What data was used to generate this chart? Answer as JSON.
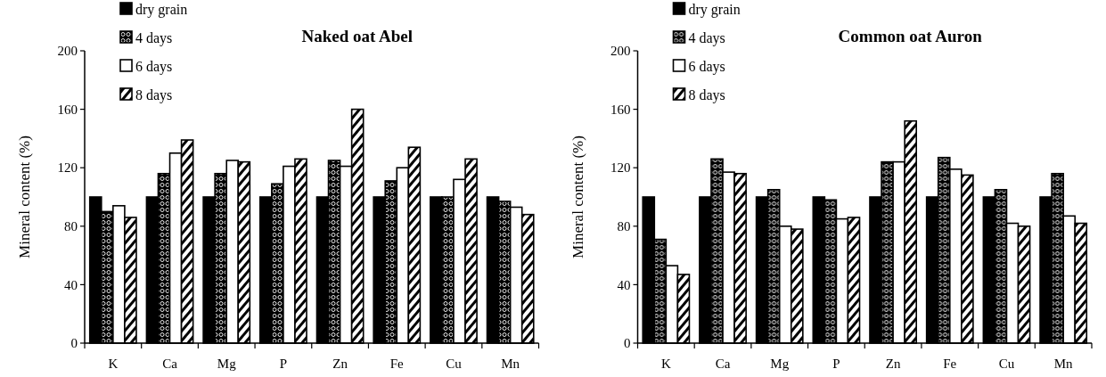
{
  "chart_data": [
    {
      "type": "bar",
      "title": "Naked oat Abel",
      "ylabel": "Mineral content (%)",
      "categories": [
        "K",
        "Ca",
        "Mg",
        "P",
        "Zn",
        "Fe",
        "Cu",
        "Mn"
      ],
      "series": [
        {
          "name": "dry grain",
          "color": "#000000",
          "values": [
            100,
            100,
            100,
            100,
            100,
            100,
            100,
            100
          ]
        },
        {
          "name": "4 days",
          "color": "#000000",
          "values": [
            90,
            116,
            116,
            109,
            125,
            111,
            100,
            97
          ]
        },
        {
          "name": "6 days",
          "color": "#ffffff",
          "values": [
            94,
            130,
            125,
            121,
            121,
            120,
            112,
            93
          ]
        },
        {
          "name": "8 days",
          "color": "#000000",
          "values": [
            86,
            139,
            124,
            126,
            160,
            134,
            126,
            88
          ]
        }
      ],
      "ylim": [
        0,
        200
      ],
      "yticks": [
        0,
        40,
        80,
        120,
        160,
        200
      ],
      "legend": "top left",
      "grid": false
    },
    {
      "type": "bar",
      "title": "Common oat Auron",
      "ylabel": "Mineral content (%)",
      "categories": [
        "K",
        "Ca",
        "Mg",
        "P",
        "Zn",
        "Fe",
        "Cu",
        "Mn"
      ],
      "series": [
        {
          "name": "dry grain",
          "color": "#000000",
          "values": [
            100,
            100,
            100,
            100,
            100,
            100,
            100,
            100
          ]
        },
        {
          "name": "4 days",
          "color": "#000000",
          "values": [
            71,
            126,
            105,
            98,
            124,
            127,
            105,
            116
          ]
        },
        {
          "name": "6 days",
          "color": "#ffffff",
          "values": [
            53,
            117,
            80,
            85,
            124,
            119,
            82,
            87
          ]
        },
        {
          "name": "8 days",
          "color": "#000000",
          "values": [
            47,
            116,
            78,
            86,
            152,
            115,
            80,
            82
          ]
        }
      ],
      "ylim": [
        0,
        200
      ],
      "yticks": [
        0,
        40,
        80,
        120,
        160,
        200
      ],
      "legend": "top left",
      "grid": false
    }
  ]
}
